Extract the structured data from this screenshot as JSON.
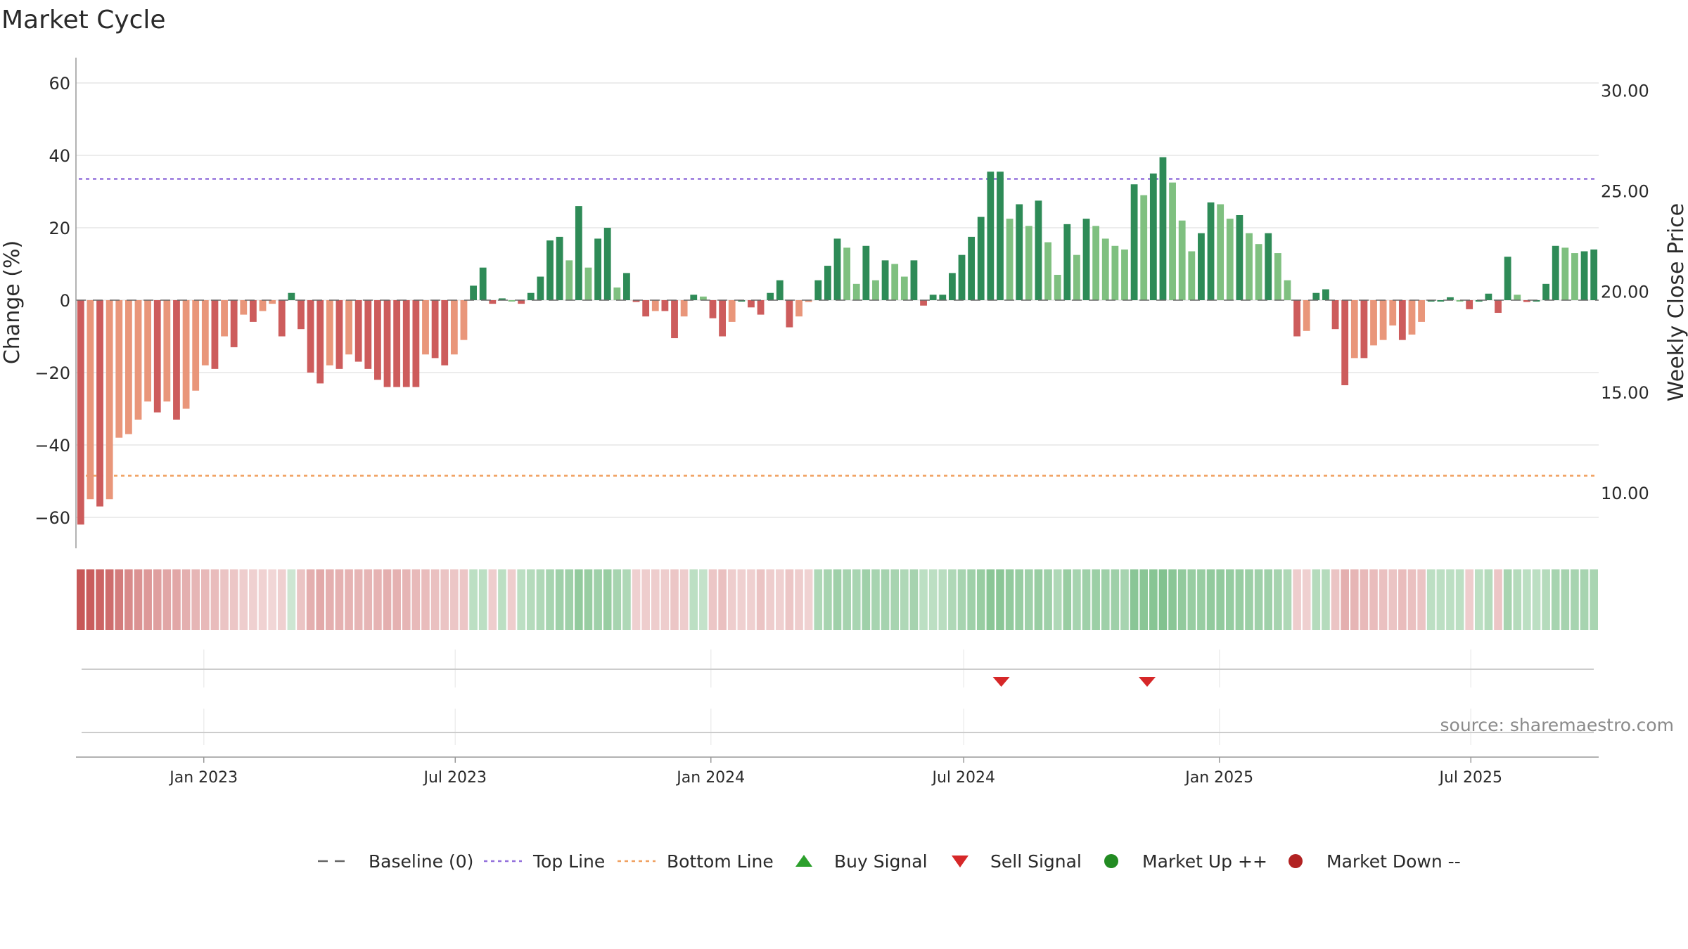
{
  "chart_data": {
    "type": "bar",
    "title": "Market Cycle",
    "ylabel": "Change (%)",
    "y2label": "Weekly Close Price",
    "source": "source: sharemaestro.com",
    "ylim": [
      -67,
      67
    ],
    "y2lim": [
      7.52,
      31.62
    ],
    "yticks": [
      "60",
      "40",
      "20",
      "0",
      "−20",
      "−40",
      "−60"
    ],
    "yticks_values": [
      60,
      40,
      20,
      0,
      -20,
      -40,
      -60
    ],
    "y2ticks": [
      "30.00",
      "25.00",
      "20.00",
      "15.00",
      "10.00"
    ],
    "y2ticks_values": [
      30,
      25,
      20,
      15,
      10
    ],
    "top_line": 33.5,
    "bottom_line": -48.5,
    "x_start": "2022-10-01",
    "x_end": "2025-10-01",
    "xticks": [
      {
        "label": "Jan 2023",
        "date": "2023-01-01"
      },
      {
        "label": "Jul 2023",
        "date": "2023-07-01"
      },
      {
        "label": "Jan 2024",
        "date": "2024-01-01"
      },
      {
        "label": "Jul 2024",
        "date": "2024-07-01"
      },
      {
        "label": "Jan 2025",
        "date": "2025-01-01"
      },
      {
        "label": "Jul 2025",
        "date": "2025-07-01"
      }
    ],
    "values": [
      -62,
      -55,
      -57,
      -55,
      -38,
      -37,
      -33,
      -28,
      -31,
      -28,
      -33,
      -30,
      -25,
      -18,
      -19,
      -10,
      -13,
      -4,
      -6,
      -3,
      -1,
      -10,
      2,
      -8,
      -20,
      -23,
      -18,
      -19,
      -15,
      -17,
      -19,
      -22,
      -24,
      -24,
      -24,
      -24,
      -15,
      -16,
      -18,
      -15,
      -11,
      4,
      9,
      -1,
      0.5,
      0,
      -1,
      2,
      6.5,
      16.5,
      17.5,
      11,
      26,
      9,
      17,
      20,
      3.5,
      7.5,
      -0.5,
      -4.5,
      -3,
      -3,
      -10.5,
      -4.5,
      1.5,
      1,
      -5,
      -10,
      -6,
      0,
      -2,
      -4,
      2,
      5.5,
      -7.5,
      -4.5,
      -0.5,
      5.5,
      9.5,
      17,
      14.5,
      4.5,
      15,
      5.5,
      11,
      10,
      6.5,
      11,
      -1.5,
      1.5,
      1.5,
      7.5,
      12.5,
      17.5,
      23,
      35.5,
      35.5,
      22.5,
      26.5,
      20.5,
      27.5,
      16,
      7,
      21,
      12.5,
      22.5,
      20.5,
      17,
      15,
      14,
      32,
      29,
      35,
      39.5,
      32.5,
      22,
      13.5,
      18.5,
      27,
      26.5,
      22.5,
      23.5,
      18.5,
      15.5,
      18.5,
      13,
      5.5,
      -10,
      -8.5,
      2,
      3,
      -8,
      -23.5,
      -16,
      -16,
      -12.5,
      -11,
      -7,
      -11,
      -9.5,
      -6,
      0,
      0,
      0.8,
      0,
      -2.5,
      0,
      1.8,
      -3.5,
      12,
      1.5,
      -0.5,
      0,
      4.5,
      15,
      14.5,
      13,
      13.5,
      14
    ],
    "strength": [
      -95,
      -90,
      -85,
      -80,
      -70,
      -60,
      -55,
      -50,
      -45,
      -42,
      -40,
      -35,
      -30,
      -28,
      -25,
      -20,
      -18,
      -15,
      -12,
      -10,
      -8,
      -12,
      15,
      -20,
      -35,
      -38,
      -35,
      -33,
      -32,
      -30,
      -30,
      -32,
      -35,
      -33,
      -30,
      -28,
      -25,
      -22,
      -20,
      -18,
      -18,
      25,
      25,
      -15,
      25,
      -15,
      25,
      30,
      35,
      40,
      45,
      45,
      55,
      50,
      45,
      50,
      40,
      35,
      -12,
      -15,
      -15,
      -15,
      -18,
      -15,
      25,
      20,
      -18,
      -22,
      -15,
      -12,
      -12,
      -20,
      -15,
      -12,
      -18,
      -15,
      -10,
      35,
      40,
      45,
      42,
      38,
      45,
      40,
      42,
      40,
      35,
      42,
      25,
      25,
      28,
      35,
      40,
      45,
      50,
      60,
      60,
      55,
      50,
      45,
      50,
      45,
      35,
      50,
      40,
      45,
      48,
      45,
      45,
      40,
      60,
      60,
      62,
      65,
      60,
      55,
      50,
      50,
      55,
      55,
      52,
      50,
      48,
      45,
      45,
      42,
      35,
      -15,
      -12,
      30,
      30,
      -20,
      -35,
      -30,
      -28,
      -25,
      -22,
      -20,
      -25,
      -22,
      -20,
      25,
      25,
      25,
      25,
      -15,
      25,
      30,
      -18,
      40,
      30,
      25,
      25,
      30,
      40,
      42,
      40,
      40,
      38
    ],
    "sell_signals": [
      "2024-07-28",
      "2024-11-10"
    ],
    "buy_signals": [],
    "colors": {
      "up_strong": "#2e8b57",
      "up_light": "#7fc080",
      "down_strong": "#cd5c5c",
      "down_light": "#e9967a",
      "top_line": "#9370db",
      "bottom_line": "#f0a060",
      "baseline": "#666666",
      "buy": "#2ca02c",
      "sell": "#d62728",
      "market_up": "#228b22",
      "market_down": "#b22222"
    },
    "legend": [
      {
        "label": "Baseline (0)",
        "kind": "dash",
        "color": "#666666"
      },
      {
        "label": "Top Line",
        "kind": "dot",
        "color": "#9370db"
      },
      {
        "label": "Bottom Line",
        "kind": "dot",
        "color": "#f0a060"
      },
      {
        "label": "Buy Signal",
        "kind": "tri-up",
        "color": "#2ca02c"
      },
      {
        "label": "Sell Signal",
        "kind": "tri-down",
        "color": "#d62728"
      },
      {
        "label": "Market Up ++",
        "kind": "circle",
        "color": "#228b22"
      },
      {
        "label": "Market Down --",
        "kind": "circle",
        "color": "#b22222"
      }
    ],
    "legend_position": "bottom-center"
  }
}
